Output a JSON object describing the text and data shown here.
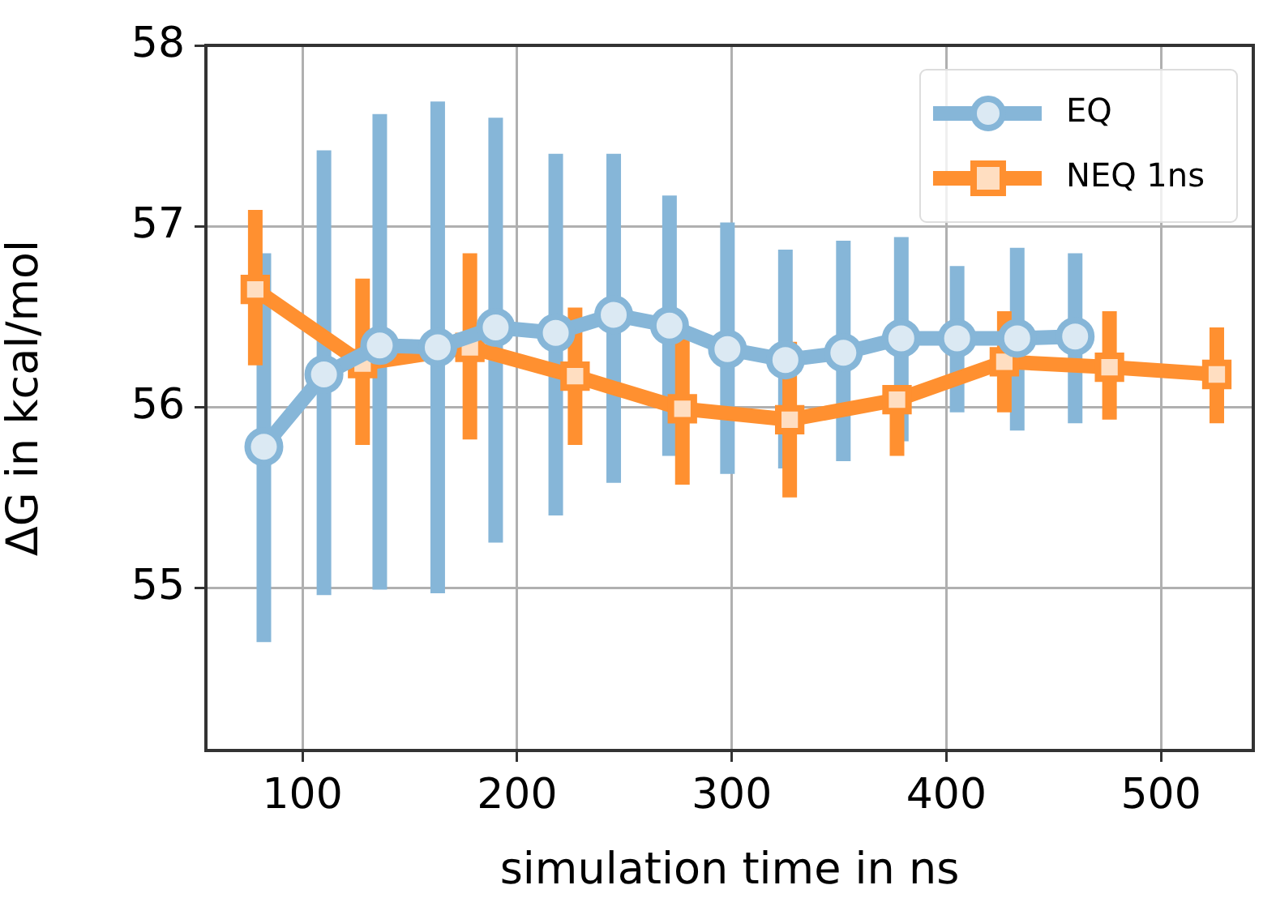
{
  "chart_data": {
    "type": "line",
    "xlabel": "simulation time in ns",
    "ylabel": "ΔG in kcal/mol",
    "xlim": [
      55,
      543
    ],
    "ylim": [
      54.1,
      58
    ],
    "xticks": [
      100,
      200,
      300,
      400,
      500
    ],
    "yticks": [
      55,
      56,
      57,
      58
    ],
    "grid": true,
    "legend": "top right",
    "line_style": "solid",
    "series": [
      {
        "name": "EQ",
        "color": "#86b6d8",
        "marker": "circle",
        "x": [
          82,
          110,
          136,
          163,
          190,
          218,
          245,
          271,
          298,
          325,
          352,
          379,
          405,
          433,
          460
        ],
        "values": [
          55.78,
          56.18,
          56.34,
          56.33,
          56.44,
          56.41,
          56.51,
          56.45,
          56.32,
          56.26,
          56.3,
          56.38,
          56.38,
          56.38,
          56.39
        ],
        "errors": [
          [
            54.7,
            56.85
          ],
          [
            54.96,
            57.42
          ],
          [
            54.99,
            57.62
          ],
          [
            54.97,
            57.69
          ],
          [
            55.25,
            57.6
          ],
          [
            55.4,
            57.4
          ],
          [
            55.58,
            57.4
          ],
          [
            55.73,
            57.17
          ],
          [
            55.63,
            57.02
          ],
          [
            55.66,
            56.87
          ],
          [
            55.7,
            56.92
          ],
          [
            55.81,
            56.94
          ],
          [
            55.97,
            56.78
          ],
          [
            55.87,
            56.88
          ],
          [
            55.91,
            56.85
          ]
        ]
      },
      {
        "name": "NEQ 1ns",
        "color": "#ff9030",
        "marker": "square",
        "x": [
          78,
          128,
          178,
          227,
          277,
          327,
          377,
          427,
          476,
          526
        ],
        "values": [
          56.65,
          56.24,
          56.33,
          56.17,
          55.99,
          55.93,
          56.04,
          56.25,
          56.22,
          56.18
        ],
        "errors": [
          [
            56.23,
            57.09
          ],
          [
            55.79,
            56.71
          ],
          [
            55.82,
            56.85
          ],
          [
            55.79,
            56.55
          ],
          [
            55.57,
            56.43
          ],
          [
            55.5,
            56.36
          ],
          [
            55.73,
            56.04
          ],
          [
            55.97,
            56.53
          ],
          [
            55.93,
            56.53
          ],
          [
            55.91,
            56.44
          ]
        ]
      }
    ]
  }
}
